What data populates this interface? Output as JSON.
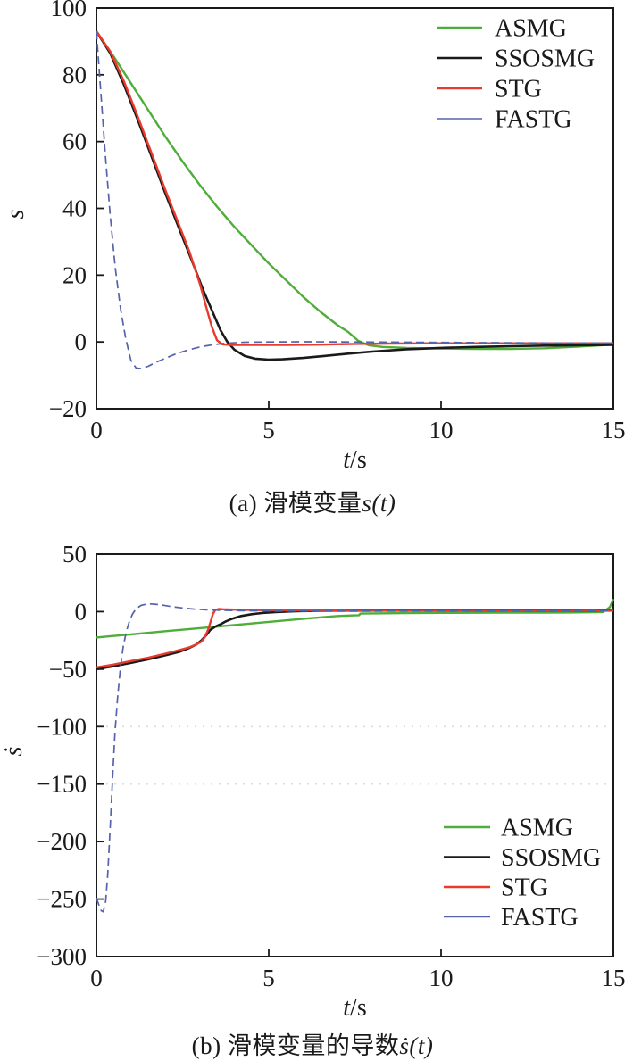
{
  "figure_colors": {
    "asmg_green": "#4FAD3A",
    "ssosmg_black": "#1a1a1a",
    "stg_red": "#E93A2E",
    "fastg_blue": "#5463AB",
    "frame": "#1a1a1a",
    "faint_grid": "#dcdcdc"
  },
  "chart_data": [
    {
      "type": "line",
      "panel": "a",
      "caption_prefix": "(a) 滑模变量",
      "caption_math": "s(t)",
      "xlabel_var": "t",
      "xlabel_unit": "/s",
      "ylabel": "s",
      "xlim": [
        0,
        15
      ],
      "ylim": [
        -20,
        100
      ],
      "xticks": [
        0,
        5,
        10,
        15
      ],
      "yticks": [
        -20,
        0,
        20,
        40,
        60,
        80,
        100
      ],
      "gridlines": [],
      "grid": false,
      "legend_position": "top-right",
      "series": [
        {
          "name": "ASMG",
          "color": "#4FAD3A",
          "width": 2.4,
          "dash": null,
          "points": [
            [
              0,
              93
            ],
            [
              0.5,
              85.5
            ],
            [
              1,
              77.5
            ],
            [
              1.5,
              69.5
            ],
            [
              2,
              61.5
            ],
            [
              2.5,
              54
            ],
            [
              3,
              47
            ],
            [
              3.5,
              40.5
            ],
            [
              4,
              34.5
            ],
            [
              4.5,
              29
            ],
            [
              5,
              23.5
            ],
            [
              5.5,
              18.5
            ],
            [
              6,
              13.5
            ],
            [
              6.5,
              9
            ],
            [
              7,
              5
            ],
            [
              7.3,
              3
            ],
            [
              7.6,
              0.3
            ],
            [
              7.9,
              -1
            ],
            [
              8.3,
              -1.5
            ],
            [
              9,
              -1.8
            ],
            [
              10,
              -2
            ],
            [
              11,
              -2.1
            ],
            [
              12,
              -2.1
            ],
            [
              13,
              -1.9
            ],
            [
              14,
              -1.4
            ],
            [
              15,
              -0.8
            ]
          ]
        },
        {
          "name": "SSOSMG",
          "color": "#1a1a1a",
          "width": 2.6,
          "dash": null,
          "points": [
            [
              0,
              93
            ],
            [
              0.4,
              86.5
            ],
            [
              0.8,
              77
            ],
            [
              1.2,
              66.5
            ],
            [
              1.6,
              55.5
            ],
            [
              2,
              44.5
            ],
            [
              2.4,
              34
            ],
            [
              2.8,
              23.5
            ],
            [
              3.1,
              15.5
            ],
            [
              3.35,
              9.5
            ],
            [
              3.6,
              3.5
            ],
            [
              3.8,
              0
            ],
            [
              4,
              -2.3
            ],
            [
              4.3,
              -4.2
            ],
            [
              4.6,
              -5
            ],
            [
              5,
              -5.3
            ],
            [
              5.4,
              -5.2
            ],
            [
              6,
              -4.8
            ],
            [
              6.6,
              -4.2
            ],
            [
              7.3,
              -3.5
            ],
            [
              8,
              -2.9
            ],
            [
              9,
              -2.2
            ],
            [
              10,
              -1.8
            ],
            [
              11,
              -1.5
            ],
            [
              12,
              -1.3
            ],
            [
              13,
              -1.1
            ],
            [
              14,
              -1
            ],
            [
              15,
              -0.9
            ]
          ]
        },
        {
          "name": "STG",
          "color": "#E93A2E",
          "width": 2.4,
          "dash": null,
          "points": [
            [
              0,
              93
            ],
            [
              0.4,
              87
            ],
            [
              0.8,
              78
            ],
            [
              1.2,
              67.5
            ],
            [
              1.6,
              56.5
            ],
            [
              2,
              45.5
            ],
            [
              2.4,
              35
            ],
            [
              2.7,
              27
            ],
            [
              3,
              17.5
            ],
            [
              3.2,
              10
            ],
            [
              3.35,
              4.5
            ],
            [
              3.5,
              0.5
            ],
            [
              3.65,
              -0.7
            ],
            [
              3.9,
              -0.9
            ],
            [
              4.5,
              -0.9
            ],
            [
              5.5,
              -0.9
            ],
            [
              6.5,
              -0.8
            ],
            [
              7.5,
              -0.6
            ],
            [
              8.5,
              -0.5
            ],
            [
              10,
              -0.4
            ],
            [
              12,
              -0.4
            ],
            [
              14,
              -0.4
            ],
            [
              15,
              -0.4
            ]
          ]
        },
        {
          "name": "FASTG",
          "color": "#5463AB",
          "width": 1.7,
          "dash": "9 5",
          "points": [
            [
              0,
              93
            ],
            [
              0.12,
              76
            ],
            [
              0.25,
              57
            ],
            [
              0.4,
              38
            ],
            [
              0.55,
              22
            ],
            [
              0.7,
              10
            ],
            [
              0.85,
              1
            ],
            [
              1,
              -5.5
            ],
            [
              1.15,
              -7.8
            ],
            [
              1.3,
              -8
            ],
            [
              1.5,
              -7.3
            ],
            [
              1.75,
              -6
            ],
            [
              2,
              -4.9
            ],
            [
              2.3,
              -3.6
            ],
            [
              2.6,
              -2.6
            ],
            [
              3,
              -1.5
            ],
            [
              3.4,
              -0.8
            ],
            [
              3.8,
              -0.35
            ],
            [
              4.3,
              -0.1
            ],
            [
              5,
              0
            ],
            [
              6,
              0.05
            ],
            [
              7.5,
              0
            ],
            [
              9,
              -0.1
            ],
            [
              11,
              -0.2
            ],
            [
              13,
              -0.3
            ],
            [
              15,
              -0.3
            ]
          ]
        }
      ]
    },
    {
      "type": "line",
      "panel": "b",
      "caption_prefix": "(b) 滑模变量的导数",
      "caption_math": "ṡ(t)",
      "xlabel_var": "t",
      "xlabel_unit": "/s",
      "ylabel": "ṡ",
      "xlim": [
        0,
        15
      ],
      "ylim": [
        -300,
        50
      ],
      "xticks": [
        0,
        5,
        10,
        15
      ],
      "yticks": [
        -300,
        -250,
        -200,
        -150,
        -100,
        -50,
        0,
        50
      ],
      "gridlines": [
        -100,
        -150
      ],
      "grid": false,
      "legend_position": "bottom-right",
      "series": [
        {
          "name": "ASMG",
          "color": "#4FAD3A",
          "width": 2.4,
          "dash": null,
          "points": [
            [
              0,
              -22.5
            ],
            [
              1,
              -19.8
            ],
            [
              2,
              -17
            ],
            [
              3,
              -14.3
            ],
            [
              4,
              -11.6
            ],
            [
              5,
              -8.9
            ],
            [
              6,
              -6.2
            ],
            [
              7,
              -3.8
            ],
            [
              7.5,
              -3.2
            ],
            [
              7.62,
              -3.1
            ],
            [
              7.66,
              -1.7
            ],
            [
              8,
              -1.5
            ],
            [
              9,
              -1.3
            ],
            [
              10,
              -1.1
            ],
            [
              11,
              -1
            ],
            [
              12,
              -0.9
            ],
            [
              13,
              -0.8
            ],
            [
              14,
              -0.7
            ],
            [
              14.7,
              -0.4
            ],
            [
              14.9,
              4
            ],
            [
              15,
              11
            ]
          ]
        },
        {
          "name": "SSOSMG",
          "color": "#1a1a1a",
          "width": 2.6,
          "dash": null,
          "points": [
            [
              0,
              -50
            ],
            [
              0.5,
              -47.5
            ],
            [
              1,
              -44.5
            ],
            [
              1.5,
              -41.5
            ],
            [
              2,
              -38
            ],
            [
              2.4,
              -35
            ],
            [
              2.7,
              -31.5
            ],
            [
              2.9,
              -28.5
            ],
            [
              3.05,
              -25
            ],
            [
              3.2,
              -20
            ],
            [
              3.3,
              -16
            ],
            [
              3.45,
              -13
            ],
            [
              3.6,
              -11
            ],
            [
              3.75,
              -8.5
            ],
            [
              3.95,
              -6
            ],
            [
              4.2,
              -3.8
            ],
            [
              4.5,
              -2.2
            ],
            [
              4.8,
              -1.2
            ],
            [
              5.2,
              -0.4
            ],
            [
              5.8,
              0.3
            ],
            [
              6.5,
              0.7
            ],
            [
              7.5,
              0.9
            ],
            [
              9,
              1
            ],
            [
              11,
              1
            ],
            [
              13,
              0.9
            ],
            [
              14.5,
              0.8
            ],
            [
              15,
              1.5
            ]
          ]
        },
        {
          "name": "STG",
          "color": "#E93A2E",
          "width": 2.4,
          "dash": null,
          "points": [
            [
              0,
              -48.5
            ],
            [
              0.5,
              -46
            ],
            [
              1,
              -43
            ],
            [
              1.5,
              -40
            ],
            [
              2,
              -36.5
            ],
            [
              2.4,
              -33.5
            ],
            [
              2.7,
              -31
            ],
            [
              2.9,
              -28.5
            ],
            [
              3.05,
              -26
            ],
            [
              3.15,
              -22
            ],
            [
              3.25,
              -15
            ],
            [
              3.32,
              -8
            ],
            [
              3.38,
              -2
            ],
            [
              3.45,
              1.5
            ],
            [
              3.55,
              2.3
            ],
            [
              3.7,
              2
            ],
            [
              4,
              1.7
            ],
            [
              4.5,
              1.4
            ],
            [
              5,
              1.2
            ],
            [
              6,
              1
            ],
            [
              7,
              0.9
            ],
            [
              9,
              0.8
            ],
            [
              11,
              0.8
            ],
            [
              13,
              0.8
            ],
            [
              15,
              0.8
            ]
          ]
        },
        {
          "name": "FASTG",
          "color": "#5463AB",
          "width": 1.7,
          "dash": "9 5",
          "points": [
            [
              0,
              -249
            ],
            [
              0.07,
              -255
            ],
            [
              0.14,
              -260
            ],
            [
              0.2,
              -261
            ],
            [
              0.27,
              -252
            ],
            [
              0.33,
              -228
            ],
            [
              0.4,
              -188
            ],
            [
              0.47,
              -145
            ],
            [
              0.54,
              -105
            ],
            [
              0.62,
              -73
            ],
            [
              0.7,
              -48
            ],
            [
              0.78,
              -30
            ],
            [
              0.87,
              -17
            ],
            [
              0.96,
              -8
            ],
            [
              1.05,
              -2
            ],
            [
              1.15,
              2.5
            ],
            [
              1.3,
              5.5
            ],
            [
              1.5,
              6.8
            ],
            [
              1.7,
              6.5
            ],
            [
              1.95,
              5.5
            ],
            [
              2.2,
              4.3
            ],
            [
              2.5,
              3.2
            ],
            [
              2.8,
              2.3
            ],
            [
              3.2,
              1.6
            ],
            [
              3.7,
              1.1
            ],
            [
              4.2,
              0.8
            ],
            [
              5,
              0.6
            ],
            [
              6,
              0.5
            ],
            [
              8,
              0.4
            ],
            [
              10,
              0.4
            ],
            [
              12,
              0.4
            ],
            [
              14,
              0.4
            ],
            [
              14.7,
              0.6
            ],
            [
              15,
              1.5
            ]
          ]
        }
      ]
    }
  ]
}
